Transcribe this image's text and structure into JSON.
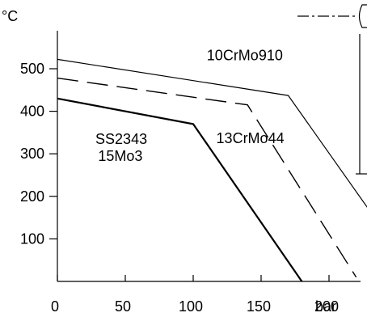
{
  "chart_data": {
    "type": "line",
    "title": "",
    "xlabel": "bar",
    "ylabel": "°C",
    "xlim": [
      0,
      240
    ],
    "ylim": [
      0,
      600
    ],
    "x_ticks": [
      0,
      50,
      100,
      150,
      200
    ],
    "y_ticks": [
      100,
      200,
      300,
      400,
      500
    ],
    "grid": false,
    "series": [
      {
        "name": "10CrMo910",
        "style": "solid-thin",
        "points": [
          [
            0,
            522
          ],
          [
            170,
            437
          ],
          [
            230,
            166
          ],
          [
            230,
            65
          ]
        ]
      },
      {
        "name": "13CrMo44",
        "style": "dashed",
        "points": [
          [
            0,
            478
          ],
          [
            140,
            415
          ],
          [
            220,
            10
          ]
        ]
      },
      {
        "name": "SS2343 15Mo3",
        "style": "solid-thick",
        "points": [
          [
            0,
            430
          ],
          [
            100,
            370
          ],
          [
            180,
            0
          ]
        ]
      }
    ],
    "curve_labels": [
      {
        "text": "10CrMo910",
        "x": 110,
        "y": 520
      },
      {
        "text": "13CrMo44",
        "x": 117,
        "y": 325
      },
      {
        "text": "SS2343",
        "x": 28,
        "y": 323
      },
      {
        "text": "15Mo3",
        "x": 30,
        "y": 283
      }
    ]
  }
}
